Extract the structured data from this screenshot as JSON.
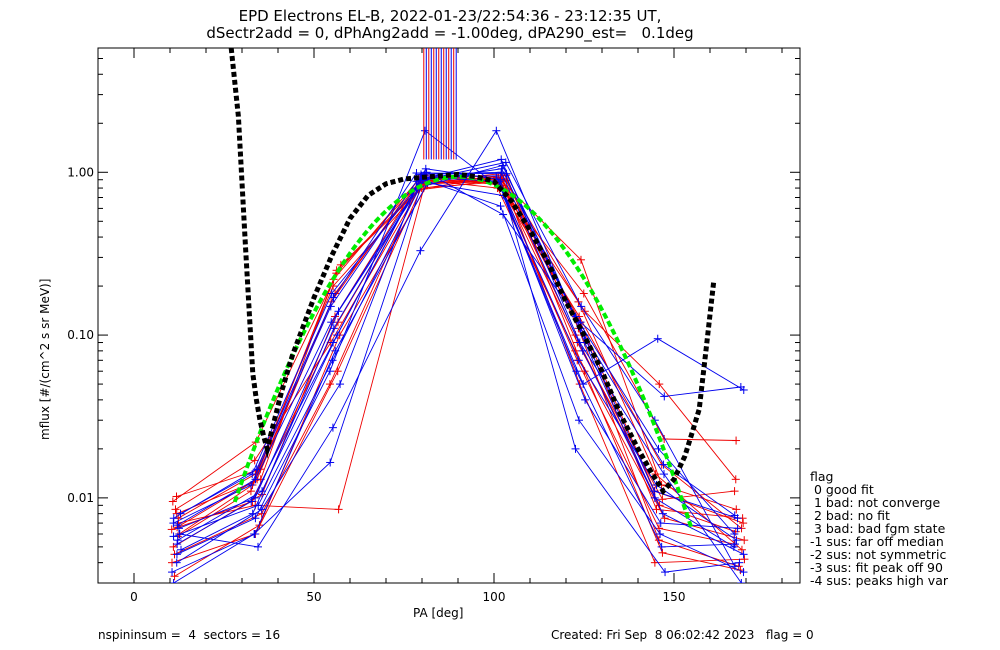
{
  "header": {
    "title_line1": "EPD Electrons EL-B, 2022-01-23/22:54:36 - 23:12:35 UT,",
    "title_line2": "dSectr2add = 0, dPhAng2add = -1.00deg, dPA290_est=   0.1deg"
  },
  "footer": {
    "left": "nspininsum =  4  sectors = 16",
    "right": "Created: Fri Sep  8 06:02:42 2023   flag = 0"
  },
  "legend": {
    "title": "flag",
    "items": [
      " 0 good fit",
      " 1 bad: not converge",
      " 2 bad: no fit",
      " 3 bad: bad fgm state",
      "-1 sus: far off median",
      "-2 sus: not symmetric",
      "-3 sus: fit peak off 90",
      "-4 sus: peaks high var"
    ]
  },
  "chart_data": {
    "type": "line",
    "xlabel": "PA [deg]",
    "ylabel": "mflux [#/(cm^2 s sr MeV)]",
    "xlim": [
      -10,
      185
    ],
    "ylim": [
      0.003,
      5.8
    ],
    "ylog": true,
    "x_ticks": [
      0,
      50,
      100,
      150
    ],
    "x_tick_labels": [
      "0",
      "50",
      "100",
      "150"
    ],
    "y_ticks": [
      0.01,
      0.1,
      1.0
    ],
    "y_tick_labels": [
      "0.01",
      "0.10",
      "1.00"
    ],
    "colors": {
      "red": "#ee0000",
      "blue": "#0000ee",
      "green": "#00ee00",
      "black": "#000000"
    },
    "pa_bins": [
      12,
      34,
      56,
      80,
      102,
      124,
      146,
      168
    ],
    "red_series": [
      [
        0.0066,
        0.013,
        0.16,
        0.92,
        0.95,
        0.12,
        0.011,
        0.007
      ],
      [
        0.0075,
        0.014,
        0.2,
        0.85,
        0.88,
        0.1,
        0.009,
        0.0062
      ],
      [
        0.006,
        0.012,
        0.24,
        0.9,
        0.8,
        0.08,
        0.0075,
        0.0055
      ],
      [
        0.0095,
        0.022,
        0.27,
        0.78,
        0.9,
        0.29,
        0.012,
        0.0085
      ],
      [
        0.005,
        0.0105,
        0.13,
        0.88,
        0.98,
        0.16,
        0.014,
        0.0048
      ],
      [
        0.0085,
        0.017,
        0.09,
        0.95,
        0.86,
        0.14,
        0.05,
        0.013
      ],
      [
        0.007,
        0.009,
        0.0085,
        0.8,
        0.93,
        0.07,
        0.0065,
        0.0052
      ],
      [
        0.004,
        0.006,
        0.06,
        0.86,
        0.89,
        0.11,
        0.0055,
        0.0038
      ],
      [
        0.0102,
        0.015,
        0.18,
        0.91,
        0.92,
        0.09,
        0.0098,
        0.011
      ],
      [
        0.0033,
        0.0068,
        0.1,
        0.84,
        0.96,
        0.06,
        0.0046,
        0.0036
      ],
      [
        0.0058,
        0.011,
        0.22,
        0.93,
        0.84,
        0.13,
        0.016,
        0.0065
      ],
      [
        0.0045,
        0.008,
        0.05,
        0.87,
        0.91,
        0.05,
        0.004,
        0.0042
      ],
      [
        0.008,
        0.013,
        0.25,
        0.8,
        0.87,
        0.18,
        0.023,
        0.0225
      ],
      [
        0.0064,
        0.0095,
        0.12,
        0.96,
        0.83,
        0.1,
        0.0085,
        0.0075
      ]
    ],
    "blue_series": [
      [
        0.007,
        0.012,
        0.15,
        0.88,
        1.05,
        0.1,
        0.016,
        0.0078
      ],
      [
        0.0052,
        0.0095,
        0.09,
        0.95,
        0.95,
        0.07,
        0.012,
        0.0055
      ],
      [
        0.008,
        0.014,
        0.18,
        0.8,
        1.1,
        0.13,
        0.02,
        0.006
      ],
      [
        0.0045,
        0.0075,
        0.06,
        1.8,
        0.8,
        0.05,
        0.095,
        0.046
      ],
      [
        0.006,
        0.005,
        0.027,
        0.33,
        1.8,
        0.09,
        0.01,
        0.005
      ],
      [
        0.003,
        0.006,
        0.0165,
        0.9,
        0.62,
        0.03,
        0.006,
        0.0035
      ],
      [
        0.0068,
        0.013,
        0.12,
        1.0,
        0.55,
        0.12,
        0.042,
        0.048
      ],
      [
        0.004,
        0.0085,
        0.05,
        0.97,
        1.0,
        0.08,
        0.008,
        0.0045
      ],
      [
        0.0055,
        0.011,
        0.1,
        1.05,
        0.9,
        0.02,
        0.0035,
        0.004
      ],
      [
        0.0065,
        0.01,
        0.14,
        0.92,
        1.2,
        0.09,
        0.014,
        0.003
      ],
      [
        0.0035,
        0.006,
        0.08,
        0.86,
        0.72,
        0.06,
        0.005,
        0.0052
      ],
      [
        0.0075,
        0.015,
        0.17,
        0.99,
        0.98,
        0.11,
        0.011,
        0.0075
      ],
      [
        0.0058,
        0.009,
        0.07,
        0.93,
        0.88,
        0.04,
        0.007,
        0.0065
      ],
      [
        0.0048,
        0.008,
        0.11,
        0.89,
        1.15,
        0.15,
        0.03,
        0.0038
      ]
    ],
    "spikes_x_range": [
      80.5,
      89.5
    ],
    "spikes_count": 14,
    "green_fit": {
      "center": 90.2,
      "peak": 0.94,
      "width": 29
    },
    "black_fit": [
      [
        27,
        5.8
      ],
      [
        29,
        2.2
      ],
      [
        31,
        0.34
      ],
      [
        33,
        0.058
      ],
      [
        34,
        0.04
      ],
      [
        35,
        0.03
      ],
      [
        36,
        0.024
      ],
      [
        37,
        0.02
      ],
      [
        39,
        0.03
      ],
      [
        41,
        0.045
      ],
      [
        44,
        0.075
      ],
      [
        50,
        0.17
      ],
      [
        55,
        0.31
      ],
      [
        60,
        0.52
      ],
      [
        65,
        0.72
      ],
      [
        70,
        0.85
      ],
      [
        75,
        0.91
      ],
      [
        80,
        0.93
      ],
      [
        85,
        0.95
      ],
      [
        90,
        0.97
      ],
      [
        95,
        0.94
      ],
      [
        100,
        0.88
      ],
      [
        105,
        0.66
      ],
      [
        110,
        0.44
      ],
      [
        115,
        0.28
      ],
      [
        120,
        0.16
      ],
      [
        125,
        0.1
      ],
      [
        130,
        0.06
      ],
      [
        135,
        0.033
      ],
      [
        140,
        0.02
      ],
      [
        144,
        0.014
      ],
      [
        147,
        0.011
      ],
      [
        150,
        0.013
      ],
      [
        153,
        0.018
      ],
      [
        155,
        0.025
      ],
      [
        157,
        0.035
      ],
      [
        159,
        0.085
      ],
      [
        161,
        0.21
      ]
    ]
  }
}
